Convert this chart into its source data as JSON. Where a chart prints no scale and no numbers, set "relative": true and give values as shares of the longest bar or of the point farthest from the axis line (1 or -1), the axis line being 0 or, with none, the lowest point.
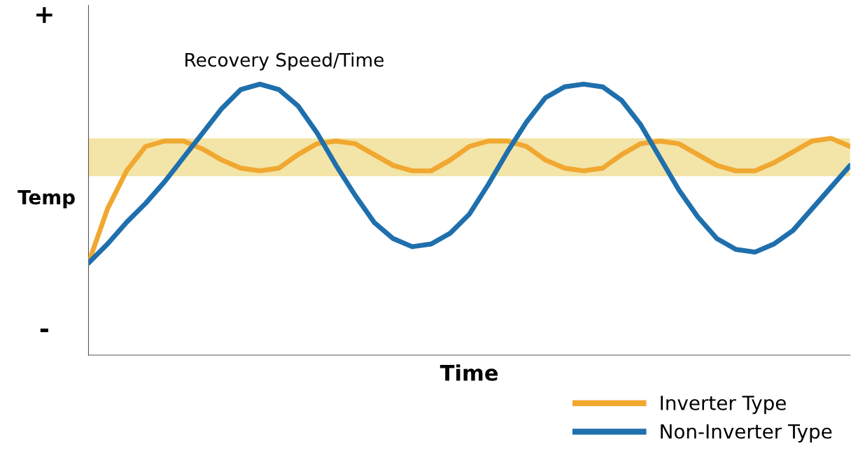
{
  "chart_data": {
    "type": "line",
    "relative": true,
    "xlabel": "Time",
    "ylabel": "Temp",
    "categories": [
      null,
      null,
      null,
      null,
      null,
      null,
      null,
      null,
      null,
      null,
      null,
      null,
      null,
      null,
      null,
      null,
      null,
      null,
      null,
      null,
      null,
      null,
      null,
      null,
      null,
      null,
      null,
      null,
      null,
      null,
      null,
      null,
      null,
      null,
      null,
      null,
      null,
      null,
      null,
      null,
      null
    ],
    "series": [
      {
        "name": "Inverter Type",
        "color": "#f0a830",
        "values": [
          0.34,
          0.54,
          0.68,
          0.77,
          0.79,
          0.79,
          0.76,
          0.72,
          0.69,
          0.68,
          0.69,
          0.74,
          0.78,
          0.79,
          0.78,
          0.74,
          0.7,
          0.68,
          0.68,
          0.72,
          0.77,
          0.79,
          0.79,
          0.77,
          0.72,
          0.69,
          0.68,
          0.69,
          0.74,
          0.78,
          0.79,
          0.78,
          0.74,
          0.7,
          0.68,
          0.68,
          0.71,
          0.75,
          0.79,
          0.8,
          0.77
        ]
      },
      {
        "name": "Non-Inverter Type",
        "color": "#1f6fad",
        "values": [
          0.34,
          0.41,
          0.49,
          0.56,
          0.64,
          0.73,
          0.82,
          0.91,
          0.98,
          1.0,
          0.98,
          0.92,
          0.82,
          0.7,
          0.59,
          0.49,
          0.43,
          0.4,
          0.41,
          0.45,
          0.52,
          0.63,
          0.75,
          0.86,
          0.95,
          0.99,
          1.0,
          0.99,
          0.94,
          0.85,
          0.73,
          0.61,
          0.51,
          0.43,
          0.39,
          0.38,
          0.41,
          0.46,
          0.54,
          0.62,
          0.7
        ]
      }
    ],
    "bands": [
      {
        "axis": "y",
        "from": 0.66,
        "to": 0.8,
        "color": "#f3e4a8"
      }
    ],
    "annotations": [
      "Recovery Speed/Time",
      "+",
      "-"
    ],
    "legend": "bottom right",
    "grid": false
  }
}
